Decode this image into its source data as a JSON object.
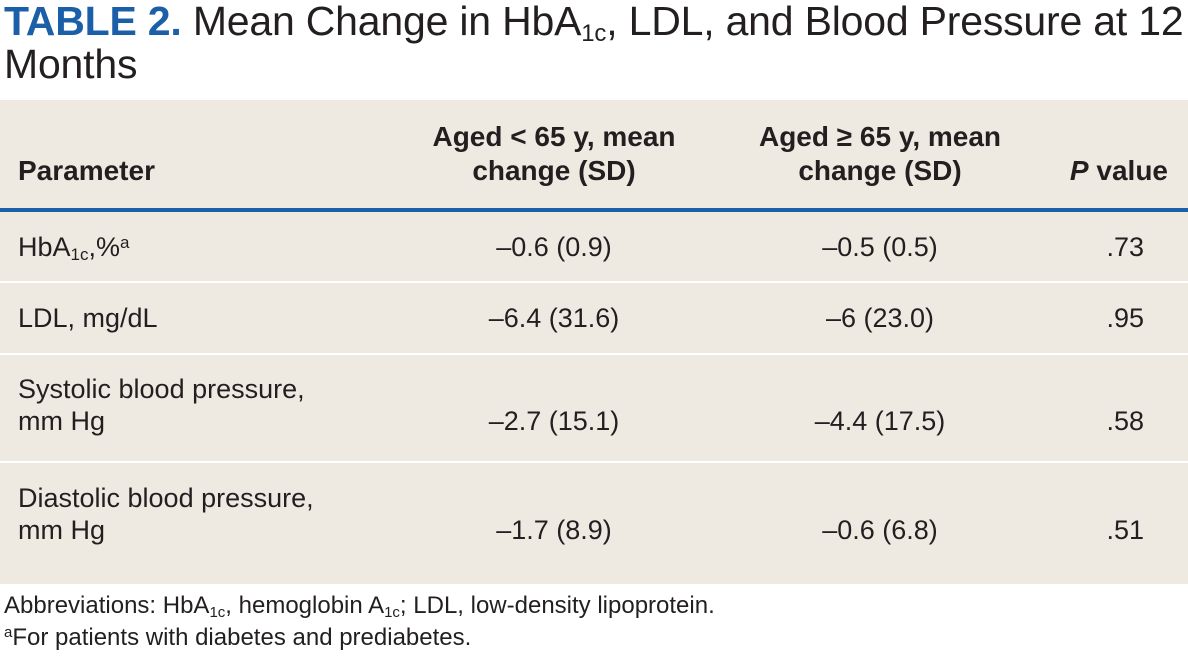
{
  "title": {
    "label": "TABLE 2.",
    "text_before_sub": "Mean Change in HbA",
    "sub": "1c",
    "text_after_sub": ", LDL, and Blood Pressure at 12 Months"
  },
  "table": {
    "headers": {
      "parameter": "Parameter",
      "under65_line1": "Aged < 65 y, mean",
      "under65_line2": "change (SD)",
      "over65_line1": "Aged ≥ 65 y, mean",
      "over65_line2": "change (SD)",
      "p_italic": "P",
      "p_rest": " value"
    },
    "rows": [
      {
        "param_main": "HbA",
        "param_sub": "1c",
        "param_after": ",%",
        "param_sup": "a",
        "under65": "–0.6 (0.9)",
        "over65": "–0.5 (0.5)",
        "p": ".73"
      },
      {
        "param_line1": "LDL, mg/dL",
        "under65": "–6.4 (31.6)",
        "over65": "–6 (23.0)",
        "p": ".95"
      },
      {
        "param_line1": "Systolic blood pressure,",
        "param_line2": "mm Hg",
        "under65": "–2.7 (15.1)",
        "over65": "–4.4 (17.5)",
        "p": ".58"
      },
      {
        "param_line1": "Diastolic blood pressure,",
        "param_line2": "mm Hg",
        "under65": "–1.7 (8.9)",
        "over65": "–0.6 (6.8)",
        "p": ".51"
      }
    ]
  },
  "footnotes": {
    "abbr_1": "Abbreviations: HbA",
    "abbr_sub1": "1c",
    "abbr_2": ", hemoglobin A",
    "abbr_sub2": "1c",
    "abbr_3": "; LDL, low-density lipoprotein.",
    "note_sup": "a",
    "note_text": "For patients with diabetes and prediabetes."
  },
  "colors": {
    "accent": "#1b5fa8",
    "table_bg": "#eeeae2",
    "text": "#231f20"
  }
}
